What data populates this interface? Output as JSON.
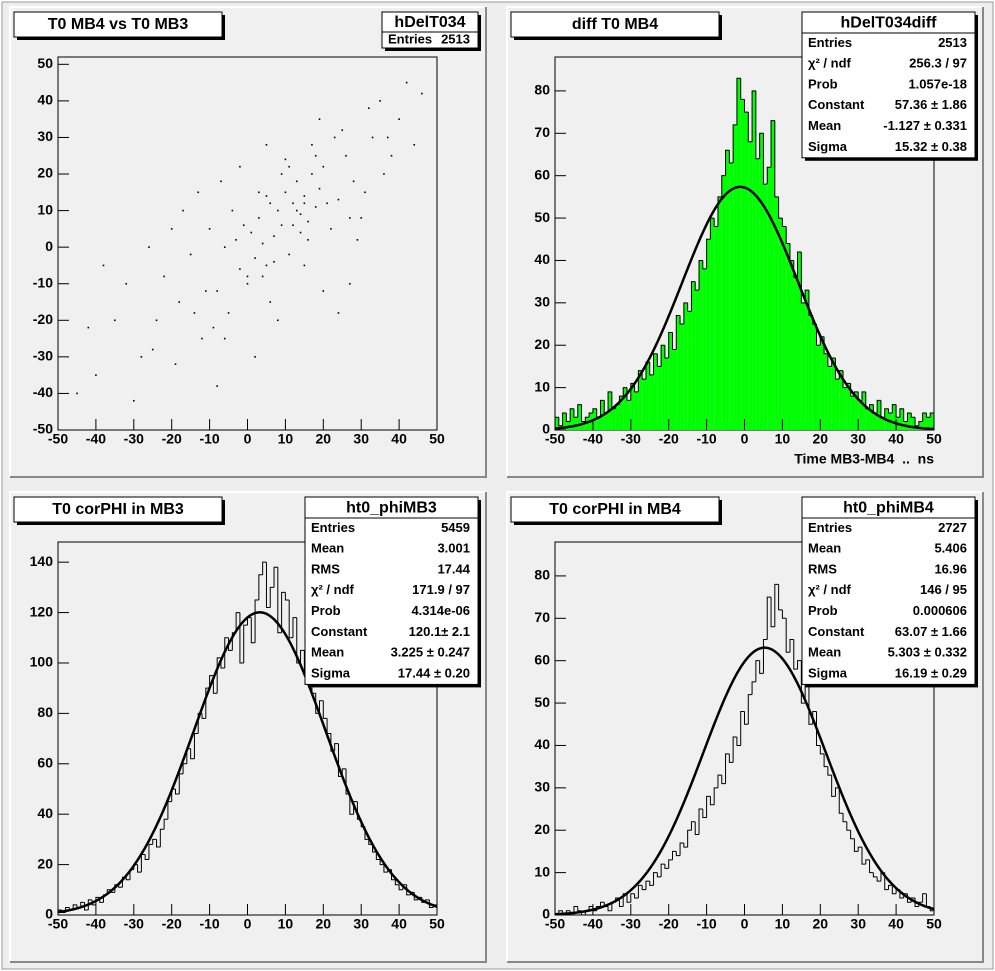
{
  "chart_data": [
    {
      "type": "scatter",
      "title": "T0 MB4 vs T0 MB3",
      "stats": {
        "name": "hDelT034",
        "rows": [
          {
            "label": "Entries",
            "value": 2513
          }
        ]
      },
      "x": [
        -35,
        -28,
        -22,
        -18,
        -15,
        -12,
        -10,
        -8,
        -6,
        -5,
        -3,
        -2,
        0,
        1,
        2,
        3,
        4,
        5,
        6,
        7,
        8,
        9,
        10,
        11,
        12,
        13,
        14,
        15,
        16,
        17,
        18,
        19,
        20,
        22,
        24,
        26,
        28,
        30,
        33,
        36,
        40,
        44,
        -40,
        -32,
        -25,
        -20,
        -14,
        -9,
        -4,
        0,
        3,
        6,
        9,
        12,
        15,
        18,
        21,
        25,
        29,
        35,
        -45,
        -38,
        -30,
        -24,
        -17,
        -11,
        -7,
        -1,
        2,
        5,
        8,
        11,
        14,
        17,
        20,
        23,
        27,
        32,
        38,
        42,
        -26,
        -19,
        -13,
        -6,
        -2,
        4,
        7,
        10,
        13,
        16,
        19,
        24,
        31,
        37,
        46,
        -42,
        -8,
        15,
        27,
        5
      ],
      "y": [
        -20,
        -30,
        -8,
        -15,
        -2,
        -25,
        5,
        -12,
        0,
        -18,
        2,
        -6,
        -10,
        4,
        -3,
        8,
        1,
        -5,
        12,
        3,
        10,
        6,
        15,
        -2,
        12,
        18,
        9,
        14,
        7,
        20,
        11,
        16,
        22,
        5,
        13,
        25,
        18,
        8,
        30,
        20,
        35,
        28,
        -35,
        -10,
        -28,
        5,
        -18,
        -22,
        10,
        -8,
        15,
        -15,
        20,
        6,
        -5,
        25,
        12,
        32,
        2,
        40,
        -40,
        -5,
        -42,
        -20,
        10,
        -12,
        18,
        6,
        -30,
        14,
        -20,
        22,
        4,
        28,
        -12,
        30,
        8,
        38,
        25,
        45,
        0,
        -32,
        15,
        -25,
        22,
        -8,
        -4,
        24,
        10,
        2,
        35,
        -18,
        15,
        30,
        42,
        -22,
        -38,
        12,
        -10,
        28
      ],
      "color": "#000000",
      "xlim": [
        -50,
        50
      ],
      "xticks": [
        -50,
        -40,
        -30,
        -20,
        -10,
        0,
        10,
        20,
        30,
        40,
        50
      ],
      "ylim": [
        -50,
        52
      ],
      "yticks": [
        -50,
        -40,
        -30,
        -20,
        -10,
        0,
        10,
        20,
        30,
        40,
        50
      ]
    },
    {
      "type": "histogram",
      "title": "diff T0 MB4",
      "x_label": "Time MB3-MB4  ..  ns",
      "stats": {
        "name": "hDelT034diff",
        "rows": [
          {
            "label": "Entries",
            "value": 2513
          },
          {
            "label": "χ² / ndf",
            "value": "256.3 / 97"
          },
          {
            "label": "Prob",
            "value": 1.057e-18
          },
          {
            "label": "Constant",
            "value": 57.36,
            "value_label": "57.36 ± 1.86"
          },
          {
            "label": "Mean",
            "value": -1.127,
            "value_label": "-1.127 ± 0.331"
          },
          {
            "label": "Sigma",
            "value": 15.32,
            "value_label": "15.32 ± 0.38"
          }
        ]
      },
      "bins": [
        -50,
        -49,
        -48,
        -47,
        -46,
        -45,
        -44,
        -43,
        -42,
        -41,
        -40,
        -39,
        -38,
        -37,
        -36,
        -35,
        -34,
        -33,
        -32,
        -31,
        -30,
        -29,
        -28,
        -27,
        -26,
        -25,
        -24,
        -23,
        -22,
        -21,
        -20,
        -19,
        -18,
        -17,
        -16,
        -15,
        -14,
        -13,
        -12,
        -11,
        -10,
        -9,
        -8,
        -7,
        -6,
        -5,
        -4,
        -3,
        -2,
        -1,
        0,
        1,
        2,
        3,
        4,
        5,
        6,
        7,
        8,
        9,
        10,
        11,
        12,
        13,
        14,
        15,
        16,
        17,
        18,
        19,
        20,
        21,
        22,
        23,
        24,
        25,
        26,
        27,
        28,
        29,
        30,
        31,
        32,
        33,
        34,
        35,
        36,
        37,
        38,
        39,
        40,
        41,
        42,
        43,
        44,
        45,
        46,
        47,
        48,
        49,
        50
      ],
      "values": [
        3,
        1,
        4,
        2,
        5,
        3,
        6,
        2,
        3,
        4,
        5,
        3,
        7,
        4,
        9,
        5,
        6,
        8,
        10,
        7,
        11,
        9,
        14,
        12,
        16,
        13,
        18,
        15,
        20,
        17,
        23,
        19,
        27,
        25,
        30,
        28,
        35,
        33,
        40,
        38,
        45,
        50,
        48,
        55,
        60,
        66,
        63,
        72,
        83,
        78,
        75,
        68,
        80,
        64,
        70,
        58,
        62,
        73,
        55,
        50,
        48,
        44,
        40,
        36,
        42,
        30,
        33,
        27,
        25,
        20,
        22,
        18,
        15,
        17,
        12,
        14,
        10,
        11,
        8,
        9,
        7,
        9,
        5,
        6,
        4,
        7,
        3,
        5,
        4,
        6,
        3,
        5,
        2,
        4,
        3,
        1,
        2,
        4,
        3,
        4
      ],
      "color": "#000000",
      "fill_color": "#00ff00",
      "fit_color": "#000000",
      "xlim": [
        -50,
        50
      ],
      "xticks": [
        -50,
        -40,
        -30,
        -20,
        -10,
        0,
        10,
        20,
        30,
        40,
        50
      ],
      "ylim": [
        0,
        88
      ],
      "yticks": [
        0,
        10,
        20,
        30,
        40,
        50,
        60,
        70,
        80
      ]
    },
    {
      "type": "histogram",
      "title": "T0 corPHI in MB3",
      "stats": {
        "name": "ht0_phiMB3",
        "rows": [
          {
            "label": "Entries",
            "value": 5459
          },
          {
            "label": "Mean",
            "value": 3.001
          },
          {
            "label": "RMS",
            "value": 17.44
          },
          {
            "label": "χ² / ndf",
            "value": "171.9 / 97"
          },
          {
            "label": "Prob",
            "value": 4.314e-06,
            "value_label": "4.314e-06"
          },
          {
            "label": "Constant",
            "value": 120.1,
            "value_label": "120.1± 2.1"
          },
          {
            "label": "Mean",
            "value": 3.225,
            "value_label": "3.225 ± 0.247"
          },
          {
            "label": "Sigma",
            "value": 17.44,
            "value_label": "17.44 ± 0.20"
          }
        ]
      },
      "bins": [
        -50,
        -49,
        -48,
        -47,
        -46,
        -45,
        -44,
        -43,
        -42,
        -41,
        -40,
        -39,
        -38,
        -37,
        -36,
        -35,
        -34,
        -33,
        -32,
        -31,
        -30,
        -29,
        -28,
        -27,
        -26,
        -25,
        -24,
        -23,
        -22,
        -21,
        -20,
        -19,
        -18,
        -17,
        -16,
        -15,
        -14,
        -13,
        -12,
        -11,
        -10,
        -9,
        -8,
        -7,
        -6,
        -5,
        -4,
        -3,
        -2,
        -1,
        0,
        1,
        2,
        3,
        4,
        5,
        6,
        7,
        8,
        9,
        10,
        11,
        12,
        13,
        14,
        15,
        16,
        17,
        18,
        19,
        20,
        21,
        22,
        23,
        24,
        25,
        26,
        27,
        28,
        29,
        30,
        31,
        32,
        33,
        34,
        35,
        36,
        37,
        38,
        39,
        40,
        41,
        42,
        43,
        44,
        45,
        46,
        47,
        48,
        49,
        50
      ],
      "values": [
        2,
        1,
        3,
        2,
        4,
        3,
        5,
        2,
        6,
        4,
        7,
        5,
        8,
        10,
        9,
        12,
        11,
        15,
        14,
        18,
        20,
        17,
        24,
        22,
        28,
        30,
        27,
        34,
        38,
        45,
        50,
        48,
        56,
        60,
        66,
        62,
        72,
        80,
        78,
        90,
        95,
        88,
        102,
        98,
        110,
        105,
        112,
        120,
        100,
        115,
        118,
        108,
        125,
        135,
        140,
        122,
        130,
        138,
        112,
        128,
        125,
        110,
        118,
        100,
        105,
        95,
        98,
        88,
        80,
        85,
        78,
        72,
        65,
        68,
        55,
        58,
        48,
        40,
        45,
        38,
        35,
        30,
        28,
        25,
        22,
        20,
        17,
        18,
        14,
        12,
        10,
        12,
        8,
        9,
        6,
        7,
        5,
        6,
        3,
        4
      ],
      "color": "#000000",
      "fit_color": "#000000",
      "xlim": [
        -50,
        50
      ],
      "xticks": [
        -50,
        -40,
        -30,
        -20,
        -10,
        0,
        10,
        20,
        30,
        40,
        50
      ],
      "ylim": [
        0,
        148
      ],
      "yticks": [
        0,
        20,
        40,
        60,
        80,
        100,
        120,
        140
      ]
    },
    {
      "type": "histogram",
      "title": "T0 corPHI in MB4",
      "stats": {
        "name": "ht0_phiMB4",
        "rows": [
          {
            "label": "Entries",
            "value": 2727
          },
          {
            "label": "Mean",
            "value": 5.406
          },
          {
            "label": "RMS",
            "value": 16.96
          },
          {
            "label": "χ² / ndf",
            "value": "146 / 95"
          },
          {
            "label": "Prob",
            "value": 0.000606
          },
          {
            "label": "Constant",
            "value": 63.07,
            "value_label": "63.07 ± 1.66"
          },
          {
            "label": "Mean",
            "value": 5.303,
            "value_label": "5.303 ± 0.332"
          },
          {
            "label": "Sigma",
            "value": 16.19,
            "value_label": "16.19 ± 0.29"
          }
        ]
      },
      "bins": [
        -50,
        -49,
        -48,
        -47,
        -46,
        -45,
        -44,
        -43,
        -42,
        -41,
        -40,
        -39,
        -38,
        -37,
        -36,
        -35,
        -34,
        -33,
        -32,
        -31,
        -30,
        -29,
        -28,
        -27,
        -26,
        -25,
        -24,
        -23,
        -22,
        -21,
        -20,
        -19,
        -18,
        -17,
        -16,
        -15,
        -14,
        -13,
        -12,
        -11,
        -10,
        -9,
        -8,
        -7,
        -6,
        -5,
        -4,
        -3,
        -2,
        -1,
        0,
        1,
        2,
        3,
        4,
        5,
        6,
        7,
        8,
        9,
        10,
        11,
        12,
        13,
        14,
        15,
        16,
        17,
        18,
        19,
        20,
        21,
        22,
        23,
        24,
        25,
        26,
        27,
        28,
        29,
        30,
        31,
        32,
        33,
        34,
        35,
        36,
        37,
        38,
        39,
        40,
        41,
        42,
        43,
        44,
        45,
        46,
        47,
        48,
        49,
        50
      ],
      "values": [
        0,
        1,
        0,
        1,
        0,
        2,
        1,
        0,
        1,
        2,
        1,
        2,
        3,
        2,
        1,
        3,
        4,
        2,
        5,
        3,
        5,
        4,
        7,
        6,
        8,
        7,
        10,
        9,
        12,
        11,
        13,
        15,
        14,
        17,
        16,
        20,
        22,
        19,
        25,
        23,
        28,
        26,
        30,
        33,
        31,
        38,
        36,
        42,
        40,
        48,
        45,
        52,
        55,
        60,
        57,
        65,
        75,
        68,
        78,
        72,
        70,
        62,
        65,
        58,
        60,
        50,
        55,
        45,
        48,
        40,
        38,
        35,
        33,
        28,
        30,
        24,
        22,
        20,
        18,
        15,
        16,
        12,
        13,
        10,
        9,
        8,
        10,
        6,
        7,
        5,
        6,
        4,
        5,
        3,
        4,
        2,
        3,
        5,
        2,
        1
      ],
      "color": "#000000",
      "fit_color": "#000000",
      "xlim": [
        -50,
        50
      ],
      "xticks": [
        -50,
        -40,
        -30,
        -20,
        -10,
        0,
        10,
        20,
        30,
        40,
        50
      ],
      "ylim": [
        0,
        88
      ],
      "yticks": [
        0,
        10,
        20,
        30,
        40,
        50,
        60,
        70,
        80
      ]
    }
  ]
}
